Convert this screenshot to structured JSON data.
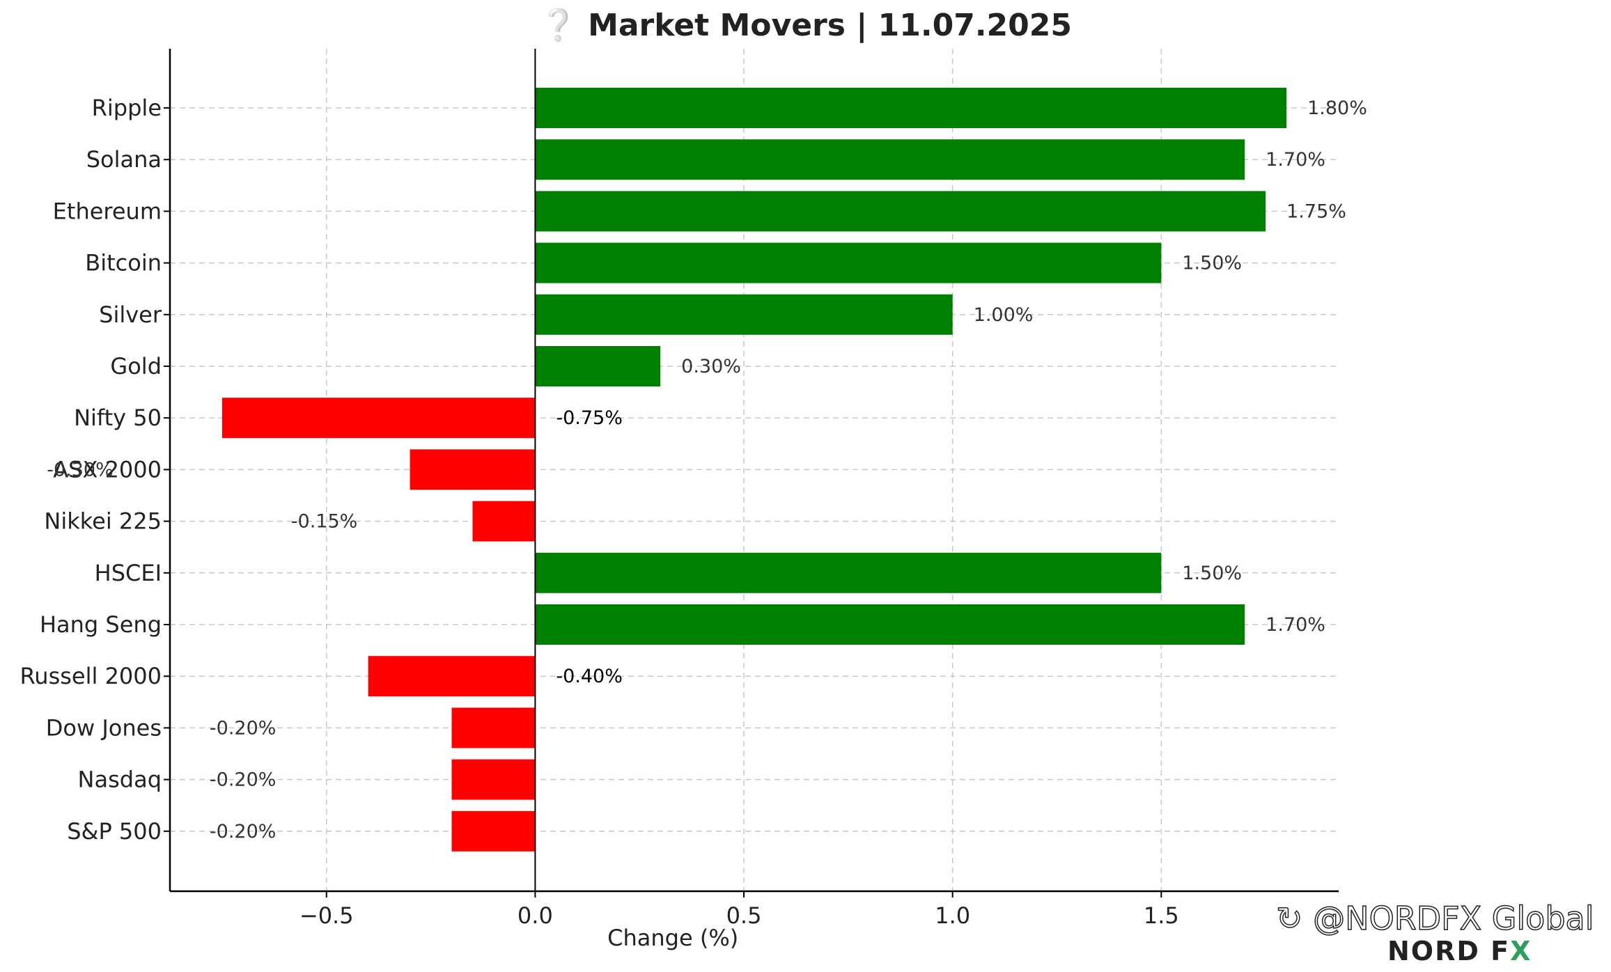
{
  "title": "❔ Market Movers | 11.07.2025",
  "watermark": {
    "handle": "↻ @NORDFX Global",
    "logo": "NORD FX"
  },
  "colors": {
    "positive": "#008000",
    "negative": "#ff0000",
    "grid": "#c8c8c8",
    "text": "#222222"
  },
  "chart_data": {
    "type": "bar",
    "orientation": "horizontal",
    "title": "❔ Market Movers | 11.07.2025",
    "xlabel": "Change (%)",
    "ylabel": "",
    "xlim": [
      -0.875,
      1.925
    ],
    "xticks": [
      -0.5,
      0.0,
      0.5,
      1.0,
      1.5
    ],
    "xtick_labels": [
      "−0.5",
      "0.0",
      "0.5",
      "1.0",
      "1.5"
    ],
    "grid": true,
    "categories": [
      "Ripple",
      "Solana",
      "Ethereum",
      "Bitcoin",
      "Silver",
      "Gold",
      "Nifty 50",
      "ASX 2000",
      "Nikkei 225",
      "HSCEI",
      "Hang Seng",
      "Russell 2000",
      "Dow Jones",
      "Nasdaq",
      "S&P 500"
    ],
    "values": [
      1.8,
      1.7,
      1.75,
      1.5,
      1.0,
      0.3,
      -0.75,
      -0.3,
      -0.15,
      1.5,
      1.7,
      -0.4,
      -0.2,
      -0.2,
      -0.2
    ],
    "data_labels": [
      "1.80%",
      "1.70%",
      "1.75%",
      "1.50%",
      "1.00%",
      "0.30%",
      "-0.75%",
      "-0.30%",
      "-0.15%",
      "1.50%",
      "1.70%",
      "-0.40%",
      "-0.20%",
      "-0.20%",
      "-0.20%"
    ]
  }
}
